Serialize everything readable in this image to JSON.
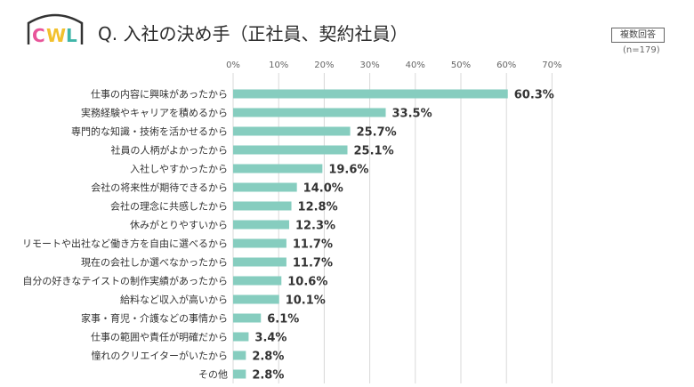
{
  "header": {
    "logo_text": "CWL",
    "title": "Q. 入社の決め手（正社員、契約社員）",
    "badge": "複数回答",
    "sample_size": "(n=179)"
  },
  "colors": {
    "bar": "#86CDBF",
    "grid": "#D9D9D9",
    "logo_c": "#E8559A",
    "logo_w": "#F2C12E",
    "logo_l": "#3FB5A8"
  },
  "chart_data": {
    "type": "bar",
    "orientation": "horizontal",
    "title": "Q. 入社の決め手（正社員、契約社員）",
    "xlim": [
      0,
      70
    ],
    "ticks": [
      "0%",
      "10%",
      "20%",
      "30%",
      "40%",
      "50%",
      "60%",
      "70%"
    ],
    "grid": true,
    "categories": [
      "仕事の内容に興味があったから",
      "実務経験やキャリアを積めるから",
      "専門的な知識・技術を活かせるから",
      "社員の人柄がよかったから",
      "入社しやすかったから",
      "会社の将来性が期待できるから",
      "会社の理念に共感したから",
      "休みがとりやすいから",
      "リモートや出社など働き方を自由に選べるから",
      "現在の会社しか選べなかったから",
      "自分の好きなテイストの制作実績があったから",
      "給料など収入が高いから",
      "家事・育児・介護などの事情から",
      "仕事の範囲や責任が明確だから",
      "憧れのクリエイターがいたから",
      "その他"
    ],
    "values": [
      60.3,
      33.5,
      25.7,
      25.1,
      19.6,
      14.0,
      12.8,
      12.3,
      11.7,
      11.7,
      10.6,
      10.1,
      6.1,
      3.4,
      2.8,
      2.8
    ],
    "value_labels": [
      "60.3%",
      "33.5%",
      "25.7%",
      "25.1%",
      "19.6%",
      "14.0%",
      "12.8%",
      "12.3%",
      "11.7%",
      "11.7%",
      "10.6%",
      "10.1%",
      "6.1%",
      "3.4%",
      "2.8%",
      "2.8%"
    ]
  }
}
